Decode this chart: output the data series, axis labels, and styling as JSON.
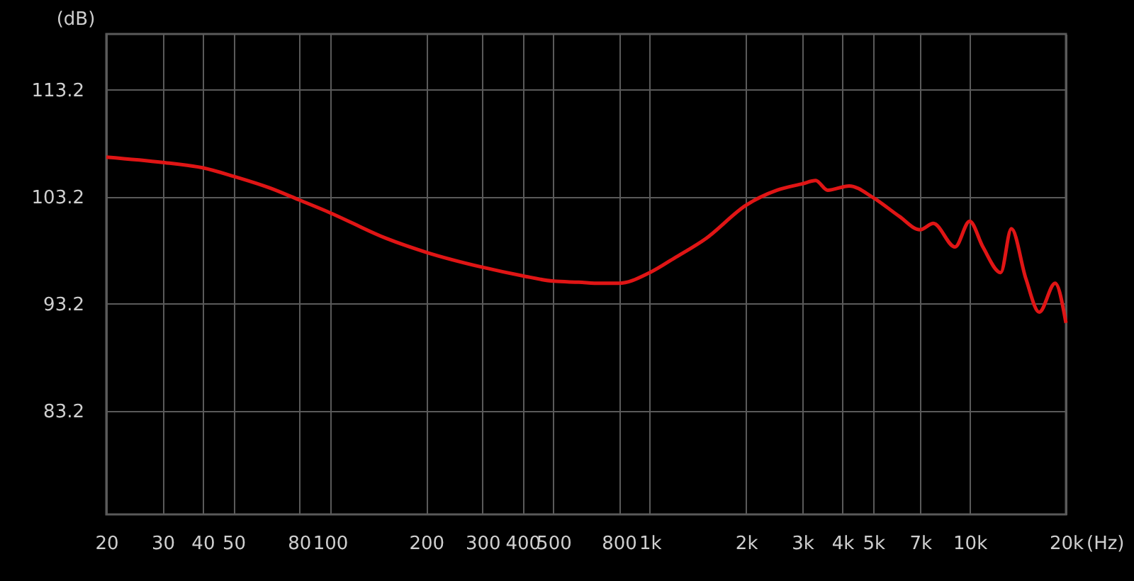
{
  "chart_data": {
    "type": "line",
    "xlabel": "(Hz)",
    "ylabel": "(dB)",
    "log": "x",
    "grid": true,
    "legend": false,
    "marker": "none",
    "line_style": "solid",
    "xlim": [
      20,
      20000
    ],
    "ylim": [
      73.5,
      118.4
    ],
    "xticks": [
      20,
      30,
      40,
      50,
      80,
      100,
      200,
      300,
      400,
      500,
      800,
      {
        "value": 1000,
        "label": "1k"
      },
      {
        "value": 2000,
        "label": "2k"
      },
      {
        "value": 3000,
        "label": "3k"
      },
      {
        "value": 4000,
        "label": "4k"
      },
      {
        "value": 5000,
        "label": "5k"
      },
      {
        "value": 7000,
        "label": "7k"
      },
      {
        "value": 10000,
        "label": "10k"
      },
      {
        "value": 20000,
        "label": "20k"
      }
    ],
    "yticks": [
      83.2,
      93.2,
      103.2,
      113.2
    ],
    "series": [
      {
        "color": "#e01515",
        "x": [
          20,
          30,
          40,
          50,
          65,
          80,
          100,
          150,
          200,
          300,
          400,
          500,
          600,
          700,
          800,
          1000,
          1200,
          1500,
          2000,
          2500,
          3000,
          3300,
          3600,
          4200,
          5000,
          6000,
          7000,
          7700,
          9000,
          10000,
          11000,
          12500,
          13500,
          15000,
          16500,
          18500,
          20000
        ],
        "values": [
          106.9,
          106.4,
          105.9,
          105.1,
          104.0,
          102.9,
          101.7,
          99.3,
          98.0,
          96.6,
          95.8,
          95.3,
          95.2,
          95.1,
          95.1,
          96.1,
          97.5,
          99.3,
          102.4,
          103.8,
          104.4,
          104.7,
          103.8,
          104.2,
          103.1,
          101.4,
          100.1,
          100.7,
          98.5,
          100.9,
          98.5,
          96.1,
          100.2,
          95.5,
          92.4,
          95.1,
          91.4
        ]
      }
    ]
  }
}
